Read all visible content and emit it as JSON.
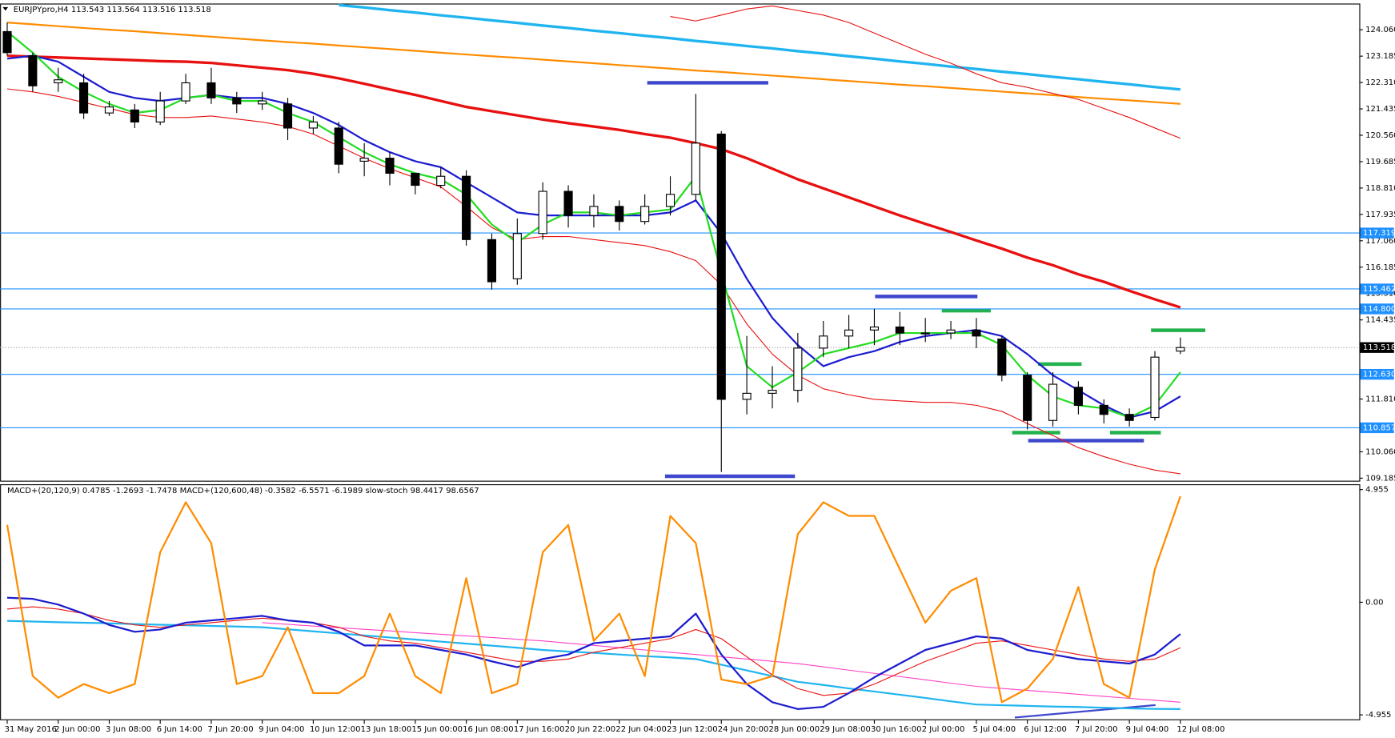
{
  "chart_data": [
    {
      "type": "candlestick",
      "title": "EURJPYpro,H4  113.543 113.564 113.516 113.518",
      "categories": [
        "31 May 2016",
        null,
        "2 Jun 00:00",
        null,
        "3 Jun 08:00",
        null,
        "6 Jun 14:00",
        null,
        "7 Jun 20:00",
        null,
        "9 Jun 04:00",
        null,
        "10 Jun 12:00",
        null,
        "13 Jun 18:00",
        null,
        "15 Jun 00:00",
        null,
        "16 Jun 08:00",
        null,
        "17 Jun 16:00",
        null,
        "20 Jun 22:00",
        null,
        "22 Jun 04:00",
        null,
        "23 Jun 12:00",
        null,
        "24 Jun 20:00",
        null,
        "28 Jun 00:00",
        null,
        "29 Jun 08:00",
        null,
        "30 Jun 16:00",
        null,
        "2 Jul 00:00",
        null,
        "5 Jul 04:00",
        null,
        "6 Jul 12:00",
        null,
        "7 Jul 20:00",
        null,
        "9 Jul 04:00",
        null,
        "12 Jul 08:00"
      ],
      "open": [
        124.0,
        123.2,
        122.3,
        122.3,
        121.3,
        121.4,
        121.0,
        121.7,
        122.3,
        121.8,
        121.6,
        121.6,
        120.8,
        120.8,
        119.7,
        119.8,
        119.3,
        118.9,
        119.2,
        117.1,
        115.8,
        117.3,
        118.7,
        117.9,
        118.2,
        117.7,
        118.2,
        118.6,
        120.6,
        111.8,
        112.0,
        112.1,
        113.5,
        113.9,
        114.1,
        114.2,
        114.0,
        114.0,
        114.1,
        113.8,
        112.6,
        111.1,
        112.2,
        111.6,
        111.3,
        111.2,
        113.4
      ],
      "high": [
        124.3,
        123.3,
        122.8,
        122.6,
        121.7,
        121.6,
        122.0,
        122.6,
        122.8,
        122.0,
        122.0,
        121.8,
        121.2,
        121.0,
        120.3,
        120.0,
        119.3,
        119.5,
        119.4,
        117.3,
        117.8,
        119.0,
        118.9,
        118.6,
        118.4,
        118.6,
        119.2,
        121.93,
        120.7,
        113.9,
        112.9,
        114.0,
        114.4,
        114.6,
        114.8,
        114.7,
        114.5,
        114.4,
        114.5,
        113.9,
        112.7,
        112.7,
        112.4,
        111.8,
        111.5,
        113.4,
        113.85
      ],
      "low": [
        123.2,
        122.0,
        122.0,
        121.1,
        121.2,
        120.8,
        120.9,
        121.6,
        121.6,
        121.3,
        121.4,
        120.4,
        120.6,
        119.3,
        119.2,
        118.9,
        118.6,
        118.8,
        116.9,
        115.44,
        115.6,
        117.1,
        117.5,
        117.5,
        117.4,
        117.6,
        117.9,
        118.4,
        109.39,
        111.3,
        111.5,
        111.7,
        113.2,
        113.5,
        113.6,
        113.6,
        113.7,
        113.8,
        113.5,
        112.4,
        110.8,
        110.9,
        111.3,
        111.0,
        110.9,
        111.1,
        113.3
      ],
      "close": [
        123.3,
        122.2,
        122.4,
        121.3,
        121.5,
        121.0,
        121.7,
        122.3,
        121.8,
        121.6,
        121.7,
        120.8,
        121.0,
        119.6,
        119.8,
        119.3,
        118.9,
        119.2,
        117.1,
        115.7,
        117.3,
        118.7,
        117.9,
        118.2,
        117.7,
        118.2,
        118.6,
        120.3,
        111.8,
        112.0,
        112.1,
        113.5,
        113.9,
        114.1,
        114.2,
        114.0,
        114.0,
        114.1,
        113.9,
        112.6,
        111.1,
        112.3,
        111.6,
        111.3,
        111.1,
        113.2,
        113.518
      ],
      "series": [
        {
          "color": "#ff8c00",
          "line_width": 2,
          "values": [
            124.3,
            124.24,
            124.18,
            124.12,
            124.06,
            124.01,
            123.95,
            123.89,
            123.83,
            123.77,
            123.71,
            123.65,
            123.6,
            123.54,
            123.48,
            123.42,
            123.36,
            123.3,
            123.24,
            123.18,
            123.13,
            123.07,
            123.01,
            122.95,
            122.89,
            122.83,
            122.77,
            122.71,
            122.66,
            122.6,
            122.54,
            122.48,
            122.42,
            122.36,
            122.3,
            122.24,
            122.19,
            122.13,
            122.07,
            122.01,
            121.95,
            121.89,
            121.83,
            121.77,
            121.72,
            121.66,
            121.6
          ]
        },
        {
          "color": "#1fb4f0",
          "line_width": 3,
          "values": [
            null,
            null,
            null,
            null,
            null,
            null,
            null,
            null,
            null,
            null,
            null,
            null,
            null,
            124.88,
            124.8,
            124.71,
            124.63,
            124.54,
            124.46,
            124.37,
            124.29,
            124.2,
            124.12,
            124.03,
            123.95,
            123.86,
            123.78,
            123.69,
            123.61,
            123.52,
            123.44,
            123.35,
            123.27,
            123.18,
            123.1,
            123.01,
            122.93,
            122.84,
            122.76,
            122.67,
            122.59,
            122.5,
            122.42,
            122.33,
            122.25,
            122.16,
            122.08
          ]
        },
        {
          "color": "#e81010",
          "line_width": 1,
          "values": [
            null,
            null,
            null,
            null,
            null,
            null,
            null,
            null,
            null,
            null,
            null,
            null,
            null,
            null,
            null,
            null,
            null,
            null,
            null,
            null,
            null,
            null,
            null,
            null,
            null,
            null,
            124.5,
            124.35,
            124.55,
            124.75,
            124.85,
            124.7,
            124.55,
            124.3,
            123.95,
            123.6,
            123.25,
            122.95,
            122.6,
            122.3,
            122.15,
            121.95,
            121.75,
            121.45,
            121.15,
            120.8,
            120.46
          ]
        },
        {
          "color": "#e81010",
          "line_width": 1,
          "values": [
            122.1,
            122.0,
            121.85,
            121.65,
            121.45,
            121.25,
            121.15,
            121.15,
            121.2,
            121.1,
            121.0,
            120.85,
            120.6,
            120.2,
            119.8,
            119.45,
            119.15,
            118.85,
            118.2,
            117.5,
            117.1,
            117.2,
            117.2,
            117.1,
            117.0,
            116.9,
            116.7,
            116.4,
            115.6,
            114.3,
            113.3,
            112.6,
            112.15,
            111.95,
            111.8,
            111.75,
            111.7,
            111.7,
            111.6,
            111.4,
            111.0,
            110.6,
            110.2,
            109.9,
            109.65,
            109.45,
            109.33
          ]
        },
        {
          "color": "#e81010",
          "line_width": 3,
          "values": [
            123.2,
            123.17,
            123.14,
            123.11,
            123.08,
            123.05,
            123.02,
            123.0,
            122.96,
            122.88,
            122.8,
            122.72,
            122.6,
            122.45,
            122.27,
            122.08,
            121.9,
            121.7,
            121.5,
            121.36,
            121.22,
            121.08,
            120.96,
            120.85,
            120.74,
            120.6,
            120.48,
            120.3,
            120.1,
            119.8,
            119.45,
            119.1,
            118.8,
            118.5,
            118.2,
            117.9,
            117.62,
            117.35,
            117.07,
            116.8,
            116.5,
            116.25,
            115.95,
            115.7,
            115.4,
            115.12,
            114.85
          ]
        },
        {
          "color": "#1c1cd0",
          "line_width": 2,
          "values": [
            123.1,
            123.2,
            123.0,
            122.5,
            122.0,
            121.8,
            121.7,
            121.8,
            121.9,
            121.8,
            121.8,
            121.6,
            121.3,
            120.9,
            120.4,
            120.0,
            119.7,
            119.5,
            119.0,
            118.5,
            118.0,
            117.9,
            117.9,
            117.9,
            117.9,
            117.9,
            118.0,
            118.4,
            117.3,
            115.8,
            114.5,
            113.6,
            112.9,
            113.2,
            113.4,
            113.7,
            113.9,
            114.0,
            114.1,
            113.9,
            113.3,
            112.6,
            112.1,
            111.6,
            111.2,
            111.4,
            111.9
          ]
        },
        {
          "color": "#22dd22",
          "line_width": 2,
          "values": [
            124.0,
            123.3,
            122.5,
            122.0,
            121.6,
            121.3,
            121.4,
            121.8,
            121.9,
            121.7,
            121.7,
            121.3,
            121.0,
            120.5,
            120.0,
            119.6,
            119.3,
            119.1,
            118.6,
            117.6,
            117.0,
            117.6,
            118.0,
            118.0,
            117.9,
            118.0,
            118.1,
            119.2,
            116.0,
            112.9,
            112.2,
            112.7,
            113.3,
            113.5,
            113.7,
            114.0,
            114.0,
            114.0,
            114.0,
            113.6,
            112.6,
            111.9,
            111.6,
            111.5,
            111.2,
            111.6,
            112.7
          ]
        }
      ],
      "levels": [
        117.319,
        115.462,
        {
          "value": 114.8,
          "label": "114.800"
        },
        {
          "value": 112.63,
          "label": "112.630"
        },
        110.857
      ],
      "current_price": 113.518,
      "ylim": [
        109.1,
        124.9
      ],
      "yticks": [
        {
          "value": 124.06,
          "label": "124.060"
        },
        123.185,
        {
          "value": 122.31,
          "label": "122.310"
        },
        121.435,
        {
          "value": 120.56,
          "label": "120.560"
        },
        119.685,
        {
          "value": 118.81,
          "label": "118.810"
        },
        117.935,
        {
          "value": 117.06,
          "label": "117.060"
        },
        116.185,
        {
          "value": 115.31,
          "label": "115.310"
        },
        114.435,
        {
          "value": 111.81,
          "label": "111.810"
        },
        {
          "value": 110.06,
          "label": "110.060"
        },
        109.185
      ]
    },
    {
      "type": "line",
      "title": "MACD+(20,120,9) 0.4785 -1.2693 -1.7478  MACD+(120,600,48) -0.3582 -6.5571 -6.1989  slow-stoch 98.4417 98.6567",
      "series": [
        {
          "color": "#1fb4f0",
          "line_width": 2,
          "values": [
            -0.82,
            -0.85,
            -0.88,
            -0.9,
            -0.93,
            -0.96,
            -0.99,
            -1.01,
            -1.04,
            -1.07,
            -1.1,
            -1.19,
            -1.28,
            -1.37,
            -1.46,
            -1.55,
            -1.64,
            -1.73,
            -1.82,
            -1.91,
            -2.0,
            -2.1,
            -2.17,
            -2.23,
            -2.3,
            -2.37,
            -2.43,
            -2.5,
            -2.75,
            -3.0,
            -3.25,
            -3.5,
            -3.64,
            -3.79,
            -3.93,
            -4.07,
            -4.21,
            -4.36,
            -4.5,
            -4.53,
            -4.56,
            -4.59,
            -4.61,
            -4.64,
            -4.67,
            -4.69,
            -4.7
          ]
        },
        {
          "color": "#ff40c8",
          "line_width": 1,
          "values": [
            null,
            null,
            null,
            null,
            null,
            null,
            null,
            null,
            null,
            null,
            -0.9,
            -0.97,
            -1.05,
            -1.12,
            -1.19,
            -1.26,
            -1.34,
            -1.41,
            -1.48,
            -1.55,
            -1.63,
            -1.7,
            -1.8,
            -1.9,
            -2.0,
            -2.1,
            -2.2,
            -2.3,
            -2.4,
            -2.5,
            -2.6,
            -2.7,
            -2.84,
            -2.99,
            -3.13,
            -3.27,
            -3.41,
            -3.56,
            -3.7,
            -3.79,
            -3.88,
            -3.96,
            -4.05,
            -4.14,
            -4.23,
            -4.31,
            -4.4
          ]
        },
        {
          "color": "#e81010",
          "line_width": 1,
          "values": [
            -0.3,
            -0.2,
            -0.3,
            -0.5,
            -0.8,
            -1.0,
            -1.1,
            -1.0,
            -0.9,
            -0.8,
            -0.7,
            -0.8,
            -0.9,
            -1.1,
            -1.5,
            -1.7,
            -1.8,
            -2.0,
            -2.2,
            -2.4,
            -2.6,
            -2.6,
            -2.5,
            -2.2,
            -2.0,
            -1.8,
            -1.6,
            -1.2,
            -1.6,
            -2.4,
            -3.2,
            -3.8,
            -4.1,
            -4.0,
            -3.6,
            -3.1,
            -2.6,
            -2.2,
            -1.8,
            -1.7,
            -1.9,
            -2.1,
            -2.3,
            -2.5,
            -2.6,
            -2.5,
            -2.0
          ]
        },
        {
          "color": "#1c1cd0",
          "line_width": 2,
          "values": [
            0.2,
            0.15,
            -0.1,
            -0.5,
            -1.0,
            -1.3,
            -1.2,
            -0.9,
            -0.8,
            -0.7,
            -0.6,
            -0.8,
            -0.9,
            -1.3,
            -1.9,
            -1.9,
            -1.9,
            -2.1,
            -2.3,
            -2.6,
            -2.86,
            -2.5,
            -2.3,
            -1.8,
            -1.7,
            -1.6,
            -1.5,
            -0.5,
            -2.3,
            -3.6,
            -4.4,
            -4.7,
            -4.6,
            -4.0,
            -3.3,
            -2.7,
            -2.1,
            -1.8,
            -1.5,
            -1.6,
            -2.1,
            -2.3,
            -2.5,
            -2.6,
            -2.7,
            -2.3,
            -1.4
          ]
        },
        {
          "color": "#ff8c00",
          "line_width": 2,
          "values": [
            3.4,
            -3.25,
            -4.2,
            -3.6,
            -4.0,
            -3.6,
            2.2,
            4.4,
            2.6,
            -3.6,
            -3.25,
            -1.1,
            -4.0,
            -4.0,
            -3.25,
            -0.5,
            -3.25,
            -4.0,
            1.06,
            -4.0,
            -3.6,
            2.2,
            3.4,
            -1.7,
            -0.5,
            -3.25,
            3.8,
            2.6,
            -3.4,
            -3.6,
            -3.25,
            3.0,
            4.4,
            3.8,
            3.8,
            1.45,
            -0.9,
            0.5,
            1.06,
            -4.4,
            -3.8,
            -2.5,
            0.67,
            -3.6,
            -4.2,
            1.45,
            4.66
          ]
        }
      ],
      "ylim": [
        -5.15,
        5.15
      ],
      "yticks": [
        4.955,
        {
          "value": 0,
          "label": "0.00"
        },
        -4.955
      ]
    }
  ]
}
